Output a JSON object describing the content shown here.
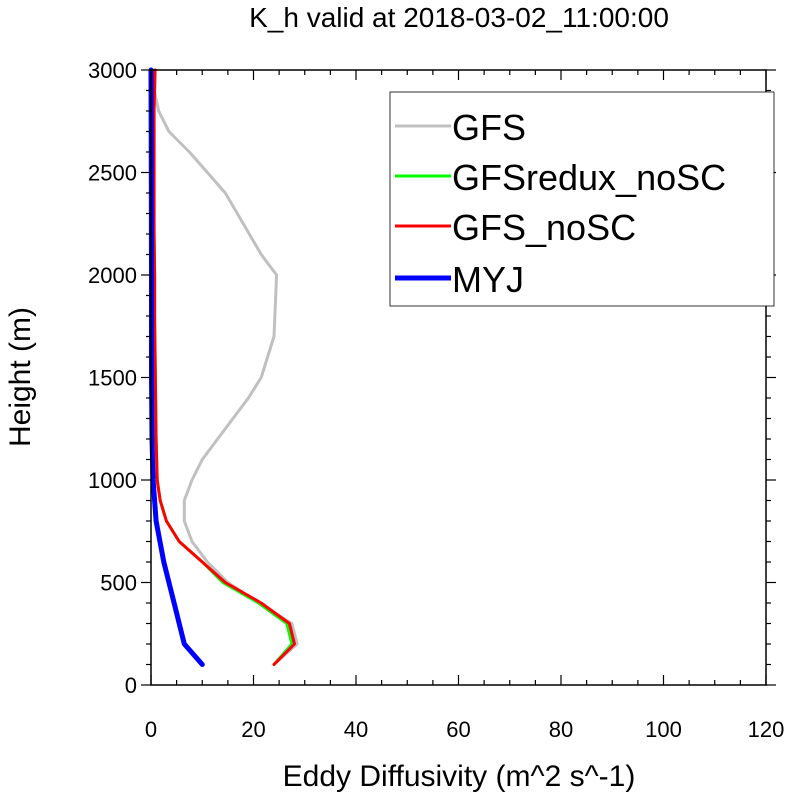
{
  "chart_data": {
    "type": "line",
    "title": "K_h valid at 2018-03-02_11:00:00",
    "xlabel": "Eddy Diffusivity (m^2 s^-1)",
    "ylabel": "Height (m)",
    "xlim": [
      0,
      120
    ],
    "ylim": [
      0,
      3000
    ],
    "xticks": [
      0,
      20,
      40,
      60,
      80,
      100,
      120
    ],
    "yticks": [
      0,
      500,
      1000,
      1500,
      2000,
      2500,
      3000
    ],
    "xtick_labels": [
      "0",
      "20",
      "40",
      "60",
      "80",
      "100",
      "120"
    ],
    "ytick_labels": [
      "0",
      "500",
      "1000",
      "1500",
      "2000",
      "2500",
      "3000"
    ],
    "grid": false,
    "legend_position": "top-right",
    "series": [
      {
        "name": "GFS",
        "color": "#c0c0c0",
        "x": [
          24,
          28.5,
          27.5,
          21,
          15,
          11,
          8,
          6.5,
          6.5,
          8,
          10,
          13,
          16,
          19,
          21.5,
          24,
          24.5,
          21.5,
          18,
          14.5,
          11,
          7.5,
          3.5,
          1.5,
          0.6,
          0.3
        ],
        "y": [
          100,
          200,
          300,
          400,
          500,
          600,
          700,
          800,
          900,
          1000,
          1100,
          1200,
          1300,
          1400,
          1500,
          1700,
          2000,
          2100,
          2250,
          2400,
          2500,
          2600,
          2700,
          2800,
          2900,
          3000
        ]
      },
      {
        "name": "GFSredux_noSC",
        "color": "#00ff00",
        "x": [
          24,
          27.5,
          26.5,
          21,
          14,
          10,
          5.5,
          3,
          1.8,
          1.2,
          1,
          0.9,
          0.8,
          0.7,
          0.7,
          0.6,
          0.5,
          0.5,
          0.4
        ],
        "y": [
          100,
          200,
          300,
          400,
          500,
          600,
          700,
          800,
          900,
          1000,
          1200,
          1400,
          1600,
          1800,
          2000,
          2200,
          2500,
          2800,
          3000
        ]
      },
      {
        "name": "GFS_noSC",
        "color": "#ff0000",
        "x": [
          24,
          28,
          27,
          21.5,
          14.5,
          10,
          5.5,
          3,
          1.8,
          1.2,
          1,
          0.9,
          0.8,
          0.7,
          0.7,
          0.6,
          0.6,
          0.6,
          0.8
        ],
        "y": [
          100,
          200,
          300,
          400,
          500,
          600,
          700,
          800,
          900,
          1000,
          1200,
          1400,
          1600,
          1800,
          2000,
          2200,
          2500,
          2800,
          3000
        ]
      },
      {
        "name": "MYJ",
        "color": "#0000ff",
        "x": [
          10,
          6.5,
          4.5,
          2.5,
          1,
          0.4,
          0.2,
          0.1,
          0.1,
          0.05,
          0
        ],
        "y": [
          100,
          200,
          400,
          600,
          800,
          1000,
          1200,
          1500,
          2000,
          2500,
          3000
        ]
      }
    ]
  }
}
